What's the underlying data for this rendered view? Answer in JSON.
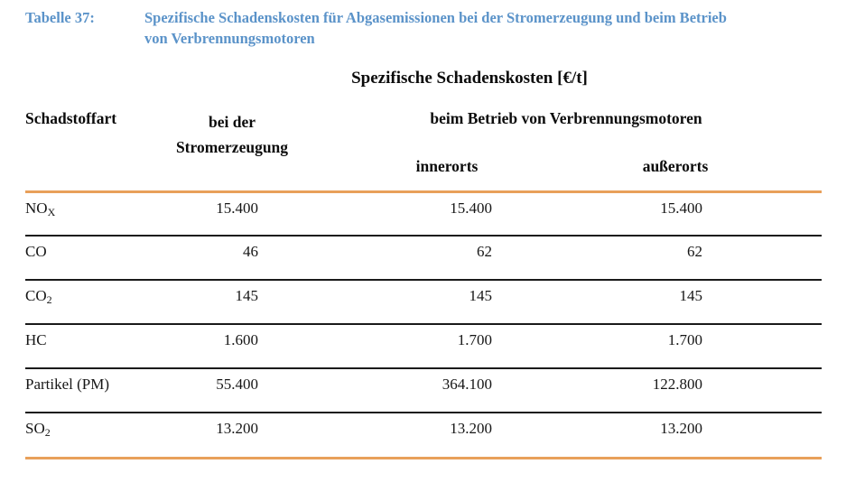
{
  "document": {
    "caption_label": "Tabelle 37:",
    "caption_line1": "Spezifische Schadenskosten für Abgasemissionen bei der Stromerzeugung und beim Betrieb",
    "caption_line2": "von Verbrennungsmotoren"
  },
  "table": {
    "title": "Spezifische Schadenskosten [€/t]",
    "headers": {
      "pollutant": "Schadstoffart",
      "electricity_line1": "bei der",
      "electricity_line2": "Stromerzeugung",
      "engines_group": "beim Betrieb von Verbrennungsmotoren",
      "urban": "innerorts",
      "rural": "außerorts"
    },
    "rows": [
      {
        "label_base": "NO",
        "label_sub": "X",
        "values": [
          "15.400",
          "15.400",
          "15.400"
        ]
      },
      {
        "label_base": "CO",
        "label_sub": "",
        "values": [
          "46",
          "62",
          "62"
        ]
      },
      {
        "label_base": "CO",
        "label_sub": "2",
        "values": [
          "145",
          "145",
          "145"
        ]
      },
      {
        "label_base": "HC",
        "label_sub": "",
        "values": [
          "1.600",
          "1.700",
          "1.700"
        ]
      },
      {
        "label_base": "Partikel (PM)",
        "label_sub": "",
        "values": [
          "55.400",
          "364.100",
          "122.800"
        ]
      },
      {
        "label_base": "SO",
        "label_sub": "2",
        "values": [
          "13.200",
          "13.200",
          "13.200"
        ]
      }
    ]
  },
  "colors": {
    "accent_blue": "#5b93c9",
    "rule_orange": "#e8a05a",
    "rule_black": "#1a1a1a"
  }
}
